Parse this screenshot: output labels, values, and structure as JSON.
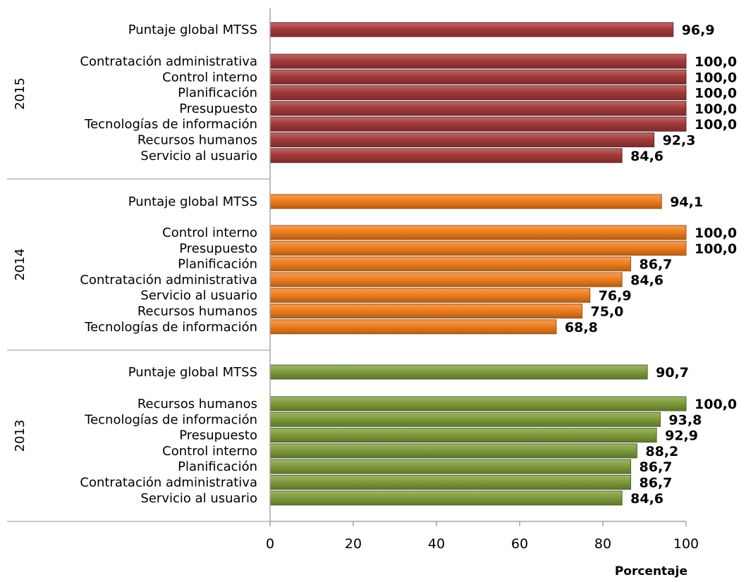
{
  "chart_data": {
    "type": "bar",
    "orientation": "horizontal",
    "xlabel": "Porcentaje",
    "xlim": [
      0,
      100
    ],
    "xticks": [
      0,
      20,
      40,
      60,
      80,
      100
    ],
    "grid": false,
    "groups": [
      {
        "name": "2015",
        "color": "#a33a3a",
        "global": {
          "label": "Puntaje global MTSS",
          "value": 96.9,
          "display": "96,9"
        },
        "items": [
          {
            "label": "Contratación administrativa",
            "value": 100.0,
            "display": "100,0"
          },
          {
            "label": "Control interno",
            "value": 100.0,
            "display": "100,0"
          },
          {
            "label": "Planificación",
            "value": 100.0,
            "display": "100,0"
          },
          {
            "label": "Presupuesto",
            "value": 100.0,
            "display": "100,0"
          },
          {
            "label": "Tecnologías de información",
            "value": 100.0,
            "display": "100,0"
          },
          {
            "label": "Recursos humanos",
            "value": 92.3,
            "display": "92,3"
          },
          {
            "label": "Servicio al usuario",
            "value": 84.6,
            "display": "84,6"
          }
        ]
      },
      {
        "name": "2014",
        "color": "#f07d1e",
        "global": {
          "label": "Puntaje global MTSS",
          "value": 94.1,
          "display": "94,1"
        },
        "items": [
          {
            "label": "Control interno",
            "value": 100.0,
            "display": "100,0"
          },
          {
            "label": "Presupuesto",
            "value": 100.0,
            "display": "100,0"
          },
          {
            "label": "Planificación",
            "value": 86.7,
            "display": "86,7"
          },
          {
            "label": "Contratación administrativa",
            "value": 84.6,
            "display": "84,6"
          },
          {
            "label": "Servicio al usuario",
            "value": 76.9,
            "display": "76,9"
          },
          {
            "label": "Recursos humanos",
            "value": 75.0,
            "display": "75,0"
          },
          {
            "label": "Tecnologías de información",
            "value": 68.8,
            "display": "68,8"
          }
        ]
      },
      {
        "name": "2013",
        "color": "#7f9c3c",
        "global": {
          "label": "Puntaje global MTSS",
          "value": 90.7,
          "display": "90,7"
        },
        "items": [
          {
            "label": "Recursos humanos",
            "value": 100.0,
            "display": "100,0"
          },
          {
            "label": "Tecnologías de información",
            "value": 93.8,
            "display": "93,8"
          },
          {
            "label": "Presupuesto",
            "value": 92.9,
            "display": "92,9"
          },
          {
            "label": "Control interno",
            "value": 88.2,
            "display": "88,2"
          },
          {
            "label": "Planificación",
            "value": 86.7,
            "display": "86,7"
          },
          {
            "label": "Contratación administrativa",
            "value": 86.7,
            "display": "86,7"
          },
          {
            "label": "Servicio al usuario",
            "value": 84.6,
            "display": "84,6"
          }
        ]
      }
    ]
  }
}
